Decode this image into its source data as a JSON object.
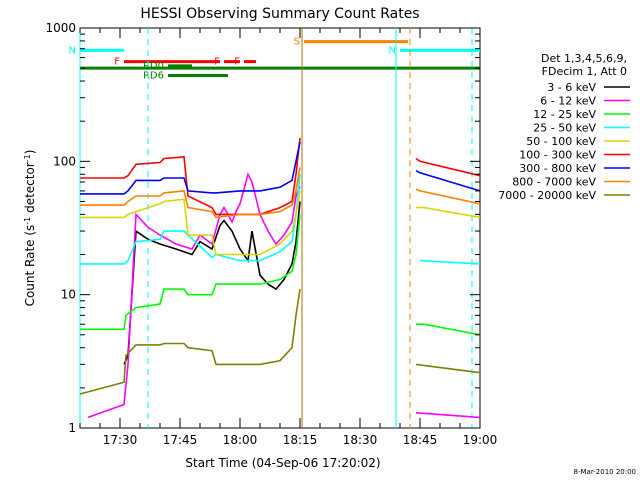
{
  "chart_data": {
    "type": "line",
    "title": "HESSI Observing Summary Count Rates",
    "xlabel": "Start Time (04-Sep-06 17:20:02)",
    "ylabel": "Count Rate (s-1 detector-1)",
    "ylabel_parts": {
      "a": "Count Rate (s",
      "b": "-1",
      "c": " detector",
      "d": "-1",
      "e": ")"
    },
    "y_scale": "log",
    "ylim": [
      1,
      1000
    ],
    "xlim_minutes": [
      0,
      100
    ],
    "x_ticks": [
      {
        "label": "17:30",
        "minutes": 10
      },
      {
        "label": "17:45",
        "minutes": 25
      },
      {
        "label": "18:00",
        "minutes": 40
      },
      {
        "label": "18:15",
        "minutes": 55
      },
      {
        "label": "18:30",
        "minutes": 70
      },
      {
        "label": "18:45",
        "minutes": 85
      },
      {
        "label": "19:00",
        "minutes": 100
      }
    ],
    "y_ticks": [
      {
        "label": "1",
        "value": 1
      },
      {
        "label": "10",
        "value": 10
      },
      {
        "label": "100",
        "value": 100
      },
      {
        "label": "1000",
        "value": 1000
      }
    ],
    "legend_header": [
      "Det 1,3,4,5,6,9,",
      "FDecim 1, Att 0"
    ],
    "legend_position": "right",
    "series": [
      {
        "name": "3 - 6 keV",
        "color": "#000000",
        "x": [
          2,
          9,
          10,
          11,
          12,
          14,
          17,
          20,
          24,
          28,
          30,
          33,
          35,
          36,
          38,
          40,
          42,
          43,
          45,
          47,
          49,
          51,
          53,
          54,
          55
        ],
        "y": [
          null,
          null,
          null,
          3,
          3.5,
          30,
          26,
          24,
          22,
          20,
          25,
          22,
          33,
          36,
          30,
          22,
          18,
          30,
          14,
          12,
          11,
          13,
          17,
          25,
          50
        ]
      },
      {
        "name": "6 - 12 keV",
        "color": "#ff00ff",
        "x": [
          2,
          11,
          12,
          14,
          17,
          20,
          24,
          28,
          30,
          33,
          35,
          36,
          37,
          38,
          39,
          40,
          42,
          43,
          45,
          47,
          49,
          51,
          53,
          54,
          55
        ],
        "y": [
          1.2,
          1.5,
          3,
          40,
          32,
          28,
          24,
          22,
          28,
          24,
          40,
          45,
          40,
          35,
          42,
          48,
          80,
          70,
          40,
          30,
          24,
          28,
          35,
          55,
          65
        ]
      },
      {
        "name": "12 - 25 keV",
        "color": "#00ff00",
        "x": [
          0,
          11,
          11.5,
          14,
          20,
          21,
          26,
          27,
          33,
          34,
          40,
          45,
          50,
          53,
          54,
          55
        ],
        "y": [
          5.5,
          5.5,
          7,
          8,
          8.5,
          11,
          11,
          10,
          10,
          12,
          12,
          12,
          13,
          15,
          20,
          40
        ]
      },
      {
        "name": "25 - 50 keV",
        "color": "#00ffff",
        "x": [
          0,
          11,
          12,
          14,
          20,
          21,
          26,
          27,
          33,
          34,
          40,
          45,
          50,
          53,
          54,
          55
        ],
        "y": [
          17,
          17,
          18,
          25,
          26,
          30,
          30,
          28,
          19,
          20,
          18,
          18,
          21,
          25,
          40,
          80
        ]
      },
      {
        "name": "50 - 100 keV",
        "color": "#d7d700",
        "x": [
          0,
          11,
          12,
          14,
          20,
          21,
          26,
          27,
          33,
          34,
          40,
          45,
          50,
          53,
          54,
          55
        ],
        "y": [
          38,
          38,
          40,
          42,
          48,
          50,
          52,
          28,
          28,
          20,
          20,
          20,
          24,
          30,
          40,
          60
        ]
      },
      {
        "name": "100 - 300 keV",
        "color": "#ff0000",
        "x": [
          0,
          11,
          12,
          14,
          20,
          21,
          26,
          27,
          33,
          34,
          40,
          45,
          50,
          53,
          54,
          55
        ],
        "y": [
          75,
          75,
          78,
          95,
          98,
          105,
          108,
          55,
          45,
          40,
          40,
          40,
          45,
          50,
          80,
          150
        ]
      },
      {
        "name": "300 - 800 keV",
        "color": "#0000ff",
        "x": [
          0,
          11,
          12,
          14,
          20,
          21,
          26,
          27,
          33,
          34,
          40,
          45,
          50,
          53,
          54,
          55
        ],
        "y": [
          57,
          57,
          60,
          72,
          72,
          75,
          75,
          60,
          58,
          58,
          60,
          60,
          64,
          72,
          100,
          140
        ]
      },
      {
        "name": "800 - 7000 keV",
        "color": "#ff8000",
        "x": [
          0,
          11,
          12,
          14,
          20,
          21,
          26,
          27,
          33,
          34,
          40,
          45,
          50,
          53,
          54,
          55
        ],
        "y": [
          47,
          47,
          50,
          55,
          55,
          58,
          60,
          45,
          42,
          38,
          40,
          40,
          42,
          47,
          60,
          90
        ]
      },
      {
        "name": "7000 - 20000 keV",
        "color": "#808000",
        "x": [
          0,
          11,
          11.5,
          14,
          20,
          21,
          26,
          27,
          33,
          34,
          40,
          45,
          50,
          53,
          54,
          55
        ],
        "y": [
          1.8,
          2.2,
          3.5,
          4.2,
          4.2,
          4.3,
          4.3,
          4.0,
          3.8,
          3.0,
          3.0,
          3.0,
          3.2,
          4,
          7,
          11
        ]
      }
    ],
    "post_gap_series": [
      {
        "name": "3 - 6 keV",
        "x": [
          0,
          0
        ],
        "y": [
          1,
          1
        ]
      },
      {
        "name": "6 - 12 keV",
        "x": [
          84,
          100
        ],
        "y": [
          1.3,
          1.2
        ]
      },
      {
        "name": "12 - 25 keV",
        "x": [
          84,
          86,
          100
        ],
        "y": [
          6,
          6,
          5
        ]
      },
      {
        "name": "25 - 50 keV",
        "x": [
          85,
          100
        ],
        "y": [
          18,
          17
        ]
      },
      {
        "name": "50 - 100 keV",
        "x": [
          84,
          86,
          100
        ],
        "y": [
          45,
          45,
          38
        ]
      },
      {
        "name": "100 - 300 keV",
        "x": [
          84,
          85,
          100
        ],
        "y": [
          105,
          100,
          78
        ]
      },
      {
        "name": "300 - 800 keV",
        "x": [
          84,
          85,
          100
        ],
        "y": [
          85,
          82,
          60
        ]
      },
      {
        "name": "800 - 7000 keV",
        "x": [
          84,
          85,
          100
        ],
        "y": [
          62,
          60,
          48
        ]
      },
      {
        "name": "7000 - 20000 keV",
        "x": [
          84,
          100
        ],
        "y": [
          3,
          2.6
        ]
      }
    ],
    "event_flags": [
      {
        "label": "N",
        "color": "#00ffff",
        "start": 0,
        "end": 11,
        "level": 680
      },
      {
        "label": "N",
        "color": "#00ffff",
        "start": 80,
        "end": 100,
        "level": 680
      },
      {
        "label": "F",
        "color": "#ff0000",
        "start": 11,
        "end": 35,
        "level": 560
      },
      {
        "label": "F",
        "color": "#ff0000",
        "start": 36,
        "end": 40,
        "level": 560
      },
      {
        "label": "F",
        "color": "#ff0000",
        "start": 41,
        "end": 44,
        "level": 560
      },
      {
        "label": "S",
        "color": "#ff8000",
        "start": 56,
        "end": 82,
        "level": 790
      },
      {
        "label": "",
        "color": "#008000",
        "start": 0,
        "end": 100,
        "level": 500
      },
      {
        "label": "RD0",
        "color": "#008000",
        "start": 22,
        "end": 28,
        "level": 520
      },
      {
        "label": "RD6",
        "color": "#008000",
        "start": 22,
        "end": 37,
        "level": 440
      }
    ],
    "vertical_lines": [
      {
        "x": 0,
        "color": "#00ffff",
        "style": "solid"
      },
      {
        "x": 17,
        "color": "#00ffff",
        "style": "dashed"
      },
      {
        "x": 55.5,
        "color": "#b07000",
        "style": "solid"
      },
      {
        "x": 79,
        "color": "#00ffff",
        "style": "solid"
      },
      {
        "x": 82.5,
        "color": "#ff8000",
        "style": "dashed"
      },
      {
        "x": 98,
        "color": "#00ffff",
        "style": "dashed"
      }
    ],
    "grid": false,
    "footer": "8-Mar-2010 20:00"
  }
}
